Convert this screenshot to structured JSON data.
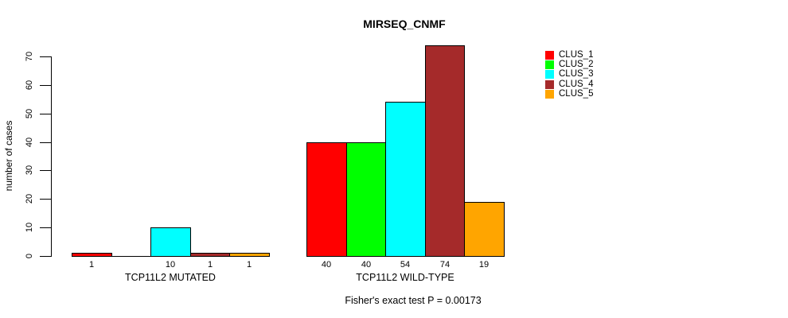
{
  "chart_data": {
    "type": "bar",
    "title": "MIRSEQ_CNMF",
    "ylabel": "number of cases",
    "xlabel": "",
    "annotation": "Fisher's exact test P = 0.00173",
    "categories": [
      "TCP11L2 MUTATED",
      "TCP11L2 WILD-TYPE"
    ],
    "series": [
      {
        "name": "CLUS_1",
        "color": "#FF0000",
        "values": [
          1,
          40
        ]
      },
      {
        "name": "CLUS_2",
        "color": "#00FF00",
        "values": [
          0,
          40
        ]
      },
      {
        "name": "CLUS_3",
        "color": "#00FFFF",
        "values": [
          10,
          54
        ]
      },
      {
        "name": "CLUS_4",
        "color": "#A52A2A",
        "values": [
          1,
          74
        ]
      },
      {
        "name": "CLUS_5",
        "color": "#FFA500",
        "values": [
          1,
          19
        ]
      }
    ],
    "bar_value_labels": [
      [
        "1",
        "",
        "10",
        "1",
        "1"
      ],
      [
        "40",
        "40",
        "54",
        "74",
        "19"
      ]
    ],
    "yticks": [
      0,
      10,
      20,
      30,
      40,
      50,
      60,
      70
    ],
    "ylim": [
      0,
      74
    ],
    "grid": false,
    "legend_position": "top-right",
    "legend": [
      "CLUS_1",
      "CLUS_2",
      "CLUS_3",
      "CLUS_4",
      "CLUS_5"
    ],
    "colors": {
      "bar_border": "#000000",
      "text": "#000000",
      "background": "#FFFFFF"
    }
  }
}
